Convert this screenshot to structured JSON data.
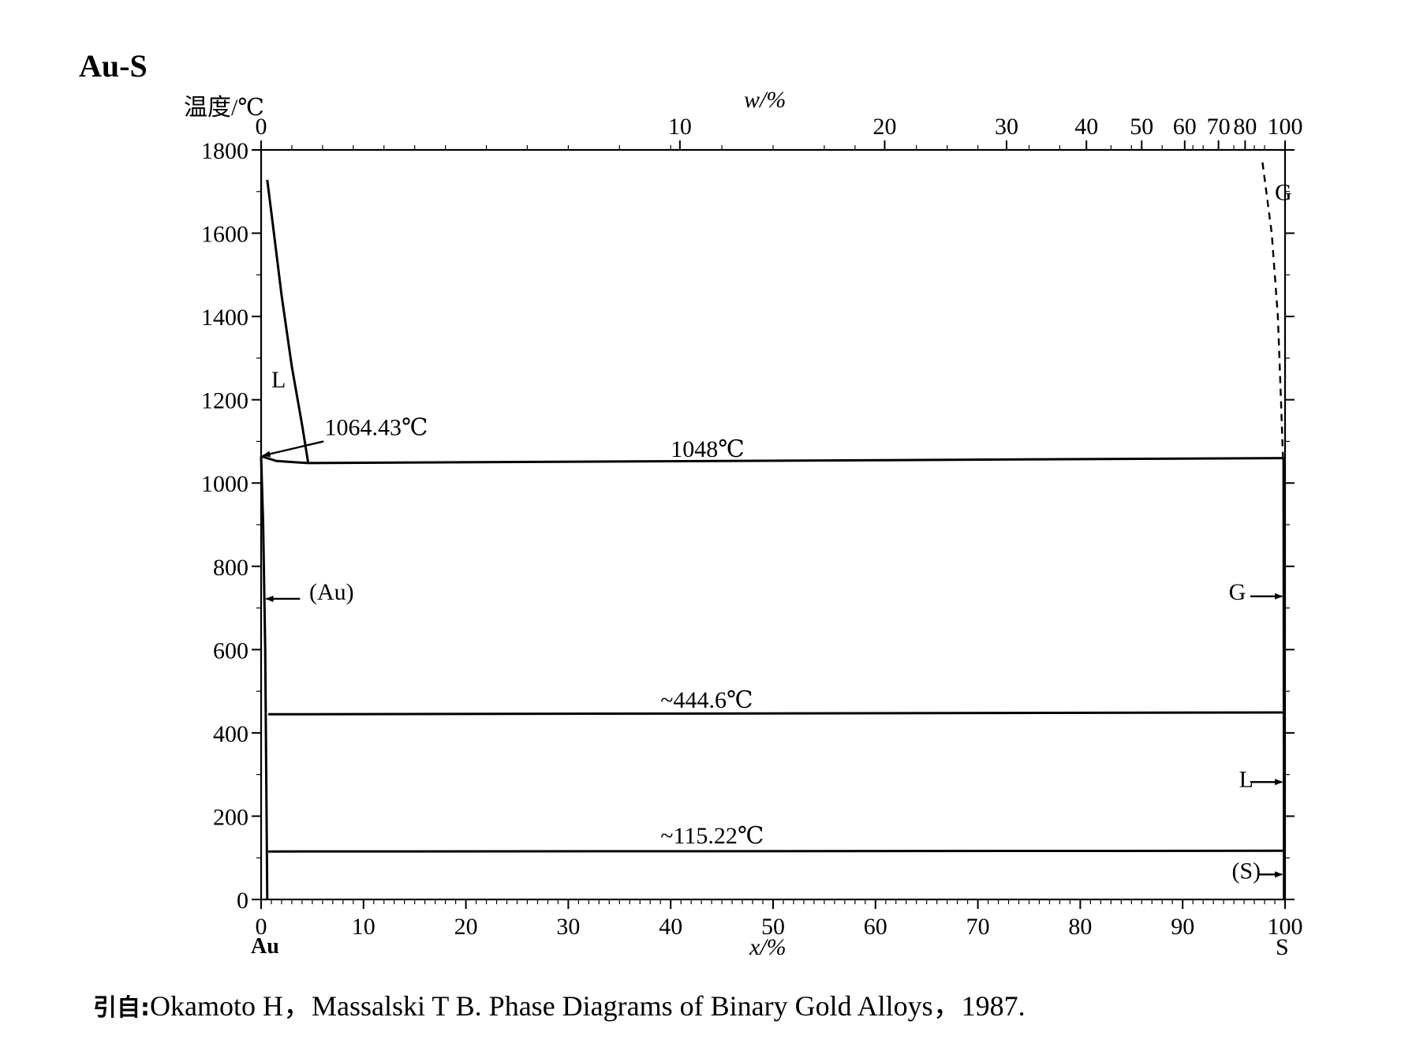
{
  "page": {
    "title": "Au-S",
    "caption_prefix": "引自:",
    "caption": "Okamoto H，Massalski T B. Phase Diagrams of Binary Gold Alloys，1987."
  },
  "chart_data": {
    "type": "line",
    "title": "",
    "ylabel": "温度/℃",
    "xlabel": "x/%",
    "x2label": "w/%",
    "xlim": [
      0,
      100
    ],
    "ylim": [
      0,
      1800
    ],
    "x_ticks": [
      0,
      10,
      20,
      30,
      40,
      50,
      60,
      70,
      80,
      90,
      100
    ],
    "y_ticks": [
      0,
      200,
      400,
      600,
      800,
      1000,
      1200,
      1400,
      1600,
      1800
    ],
    "x_end_labels": {
      "left": "Au",
      "right": "S"
    },
    "w_ticks": [
      {
        "label": "0",
        "x": 0
      },
      {
        "label": "10",
        "x": 40.9
      },
      {
        "label": "20",
        "x": 60.9
      },
      {
        "label": "30",
        "x": 72.8
      },
      {
        "label": "40",
        "x": 80.6
      },
      {
        "label": "50",
        "x": 86.0
      },
      {
        "label": "60",
        "x": 90.2
      },
      {
        "label": "70",
        "x": 93.5
      },
      {
        "label": "80",
        "x": 96.1
      },
      {
        "label": "100",
        "x": 100
      }
    ],
    "series": [
      {
        "style": "solid",
        "points": [
          [
            0.6,
            1728
          ],
          [
            1.2,
            1610
          ],
          [
            2.0,
            1450
          ],
          [
            3.0,
            1280
          ],
          [
            4.0,
            1140
          ],
          [
            4.6,
            1048
          ]
        ]
      },
      {
        "style": "solid",
        "points": [
          [
            0.0,
            1064.43
          ],
          [
            1.5,
            1053
          ],
          [
            4.6,
            1048
          ]
        ]
      },
      {
        "style": "solid",
        "points": [
          [
            4.6,
            1048
          ],
          [
            99.9,
            1060
          ]
        ]
      },
      {
        "style": "solid",
        "points": [
          [
            0.7,
            444.6
          ],
          [
            99.9,
            449
          ]
        ]
      },
      {
        "style": "solid",
        "points": [
          [
            0.7,
            115.22
          ],
          [
            99.9,
            117
          ]
        ]
      },
      {
        "style": "solid",
        "points": [
          [
            0.0,
            1064.43
          ],
          [
            0.2,
            900
          ],
          [
            0.4,
            600
          ],
          [
            0.5,
            300
          ],
          [
            0.6,
            0
          ]
        ]
      },
      {
        "style": "solid",
        "points": [
          [
            99.85,
            1060
          ],
          [
            99.9,
            0
          ]
        ]
      },
      {
        "style": "dashed",
        "points": [
          [
            97.8,
            1770
          ],
          [
            98.7,
            1600
          ],
          [
            99.3,
            1400
          ],
          [
            99.6,
            1200
          ],
          [
            99.8,
            1060
          ]
        ]
      }
    ],
    "annotations": [
      {
        "text": "L",
        "x": 1.0,
        "y": 1230
      },
      {
        "text": "1064.43℃",
        "x": 6.2,
        "y": 1115
      },
      {
        "text": "1048℃",
        "x": 40.0,
        "y": 1063
      },
      {
        "text": "(Au)",
        "x": 4.7,
        "y": 720
      },
      {
        "text": "G",
        "x": 94.5,
        "y": 720
      },
      {
        "text": "G",
        "x": 99.0,
        "y": 1680
      },
      {
        "text": "~444.6℃",
        "x": 39.0,
        "y": 460
      },
      {
        "text": "L",
        "x": 95.5,
        "y": 270
      },
      {
        "text": "~115.22℃",
        "x": 39.0,
        "y": 135
      },
      {
        "text": "(S)",
        "x": 94.8,
        "y": 50
      }
    ]
  }
}
